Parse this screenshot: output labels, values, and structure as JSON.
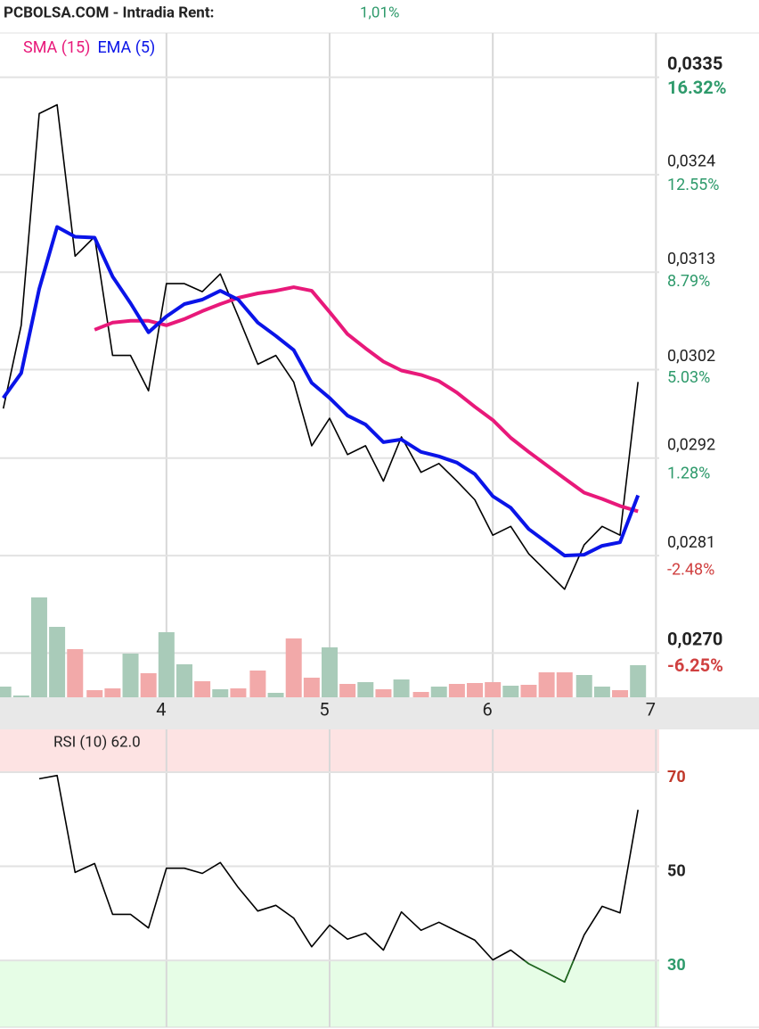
{
  "header": {
    "title": "PCBOLSA.COM - Intradia  Rent:",
    "change": "1,01%",
    "change_color": "#2e9a6b"
  },
  "chart_data": [
    {
      "type": "line",
      "x": [
        3.0,
        3.11,
        3.22,
        3.33,
        3.44,
        3.56,
        3.67,
        3.78,
        3.89,
        4.0,
        4.11,
        4.22,
        4.33,
        4.44,
        4.56,
        4.67,
        4.78,
        4.89,
        5.0,
        5.11,
        5.22,
        5.33,
        5.44,
        5.56,
        5.67,
        5.78,
        5.89,
        6.0,
        6.11,
        6.22,
        6.33,
        6.44,
        6.56,
        6.67,
        6.78,
        6.89
      ],
      "xlim": [
        2.98,
        7.02
      ],
      "xticks": [
        4,
        5,
        6,
        7
      ],
      "ylim": [
        0.0265,
        0.034
      ],
      "yticks": [
        {
          "value": 0.027,
          "label": "0,0270"
        },
        {
          "value": 0.0281,
          "label": "0,0281"
        },
        {
          "value": 0.0292,
          "label": "0,0292"
        },
        {
          "value": 0.0302,
          "label": "0,0302"
        },
        {
          "value": 0.0313,
          "label": "0,0313"
        },
        {
          "value": 0.0324,
          "label": "0,0324"
        },
        {
          "value": 0.0335,
          "label": "0,0335"
        }
      ],
      "y2lim": [
        -7.96,
        17.99
      ],
      "y2ticks": [
        {
          "value": -6.25,
          "label": "-6.25%"
        },
        {
          "value": -2.48,
          "label": "-2.48%"
        },
        {
          "value": 1.28,
          "label": "1.28%"
        },
        {
          "value": 5.03,
          "label": "5.03%"
        },
        {
          "value": 8.79,
          "label": "8.79%"
        },
        {
          "value": 12.55,
          "label": "12.55%"
        },
        {
          "value": 16.32,
          "label": "16.32%"
        }
      ],
      "grid": true,
      "series": [
        {
          "color": "#000000",
          "width": 1.6,
          "values": [
            0.02976,
            0.0307,
            0.03309,
            0.03319,
            0.03148,
            0.0317,
            0.03036,
            0.03036,
            0.02996,
            0.03117,
            0.03117,
            0.03108,
            0.03128,
            0.0308,
            0.03026,
            0.03036,
            0.03006,
            0.02934,
            0.02965,
            0.02924,
            0.02934,
            0.02894,
            0.02944,
            0.02904,
            0.02914,
            0.02894,
            0.02873,
            0.02833,
            0.02843,
            0.02812,
            0.02792,
            0.02772,
            0.02822,
            0.02843,
            0.02833,
            0.03006
          ]
        },
        {
          "name": "SMA (15)",
          "color": "#e8197a",
          "width": 4,
          "values": [
            null,
            null,
            null,
            null,
            null,
            0.03065,
            0.03073,
            0.03075,
            0.03075,
            0.0307,
            0.03077,
            0.03086,
            0.03094,
            0.03101,
            0.03106,
            0.03109,
            0.03113,
            0.03109,
            0.03085,
            0.0306,
            0.03044,
            0.03029,
            0.03019,
            0.03014,
            0.03007,
            0.02994,
            0.02978,
            0.02963,
            0.02943,
            0.02927,
            0.02912,
            0.02897,
            0.02881,
            0.02874,
            0.02866,
            0.0286
          ]
        },
        {
          "name": "EMA (5)",
          "color": "#0a14e8",
          "width": 4,
          "values": [
            0.02988,
            0.03016,
            0.03111,
            0.03181,
            0.0317,
            0.03169,
            0.03125,
            0.03095,
            0.03062,
            0.0308,
            0.03094,
            0.03099,
            0.03109,
            0.03099,
            0.03073,
            0.03058,
            0.03042,
            0.03005,
            0.02988,
            0.02968,
            0.02958,
            0.02938,
            0.02941,
            0.02927,
            0.02922,
            0.02915,
            0.02902,
            0.02877,
            0.02864,
            0.0284,
            0.02825,
            0.0281,
            0.02811,
            0.02821,
            0.02825,
            0.02878
          ]
        }
      ],
      "volume": {
        "values": [
          12,
          2,
          112,
          79,
          54,
          8,
          10,
          49,
          27,
          73,
          37,
          18,
          9,
          10,
          30,
          5,
          66,
          22,
          56,
          15,
          17,
          9,
          20,
          6,
          12,
          15,
          16,
          17,
          13,
          14,
          28,
          28,
          25,
          12,
          8,
          36
        ],
        "colors": [
          "#a9cbb9",
          "#a9cbb9",
          "#a9cbb9",
          "#a9cbb9",
          "#f2a9a9",
          "#f2a9a9",
          "#f2a9a9",
          "#a9cbb9",
          "#f2a9a9",
          "#a9cbb9",
          "#a9cbb9",
          "#f2a9a9",
          "#a9cbb9",
          "#f2a9a9",
          "#f2a9a9",
          "#a9cbb9",
          "#f2a9a9",
          "#f2a9a9",
          "#a9cbb9",
          "#f2a9a9",
          "#a9cbb9",
          "#f2a9a9",
          "#a9cbb9",
          "#f2a9a9",
          "#a9cbb9",
          "#f2a9a9",
          "#f2a9a9",
          "#f2a9a9",
          "#a9cbb9",
          "#f2a9a9",
          "#f2a9a9",
          "#f2a9a9",
          "#a9cbb9",
          "#a9cbb9",
          "#f2a9a9",
          "#a9cbb9"
        ]
      }
    },
    {
      "type": "line",
      "title": "RSI (10) 62.0",
      "x": [
        3.0,
        3.11,
        3.22,
        3.33,
        3.44,
        3.56,
        3.67,
        3.78,
        3.89,
        4.0,
        4.11,
        4.22,
        4.33,
        4.44,
        4.56,
        4.67,
        4.78,
        4.89,
        5.0,
        5.11,
        5.22,
        5.33,
        5.44,
        5.56,
        5.67,
        5.78,
        5.89,
        6.0,
        6.11,
        6.22,
        6.33,
        6.44,
        6.56,
        6.67,
        6.78,
        6.89
      ],
      "xlim": [
        2.98,
        7.02
      ],
      "xticks": [
        4,
        5,
        6,
        7
      ],
      "ylim": [
        15.8,
        79.1
      ],
      "yticks": [
        30,
        50,
        70
      ],
      "ytick_colors": [
        "#2e9a6b",
        "#222222",
        "#c0392b"
      ],
      "grid": true,
      "bands": [
        {
          "from": 70,
          "color": "#fde3e3"
        },
        {
          "to": 30,
          "color": "#e6fde6",
          "line_color": "#1e6b1e"
        }
      ],
      "series": [
        {
          "color": "#000000",
          "width": 1.6,
          "values": [
            null,
            null,
            68.6,
            69.3,
            48.7,
            50.6,
            39.8,
            39.8,
            36.9,
            49.6,
            49.6,
            48.5,
            50.8,
            45.5,
            40.5,
            41.7,
            39.0,
            32.9,
            37.5,
            34.5,
            35.8,
            32.2,
            40.3,
            36.4,
            38.1,
            36.2,
            34.3,
            30.1,
            32.2,
            29.3,
            27.4,
            25.4,
            35.4,
            41.5,
            40.1,
            62.0
          ]
        }
      ]
    }
  ]
}
